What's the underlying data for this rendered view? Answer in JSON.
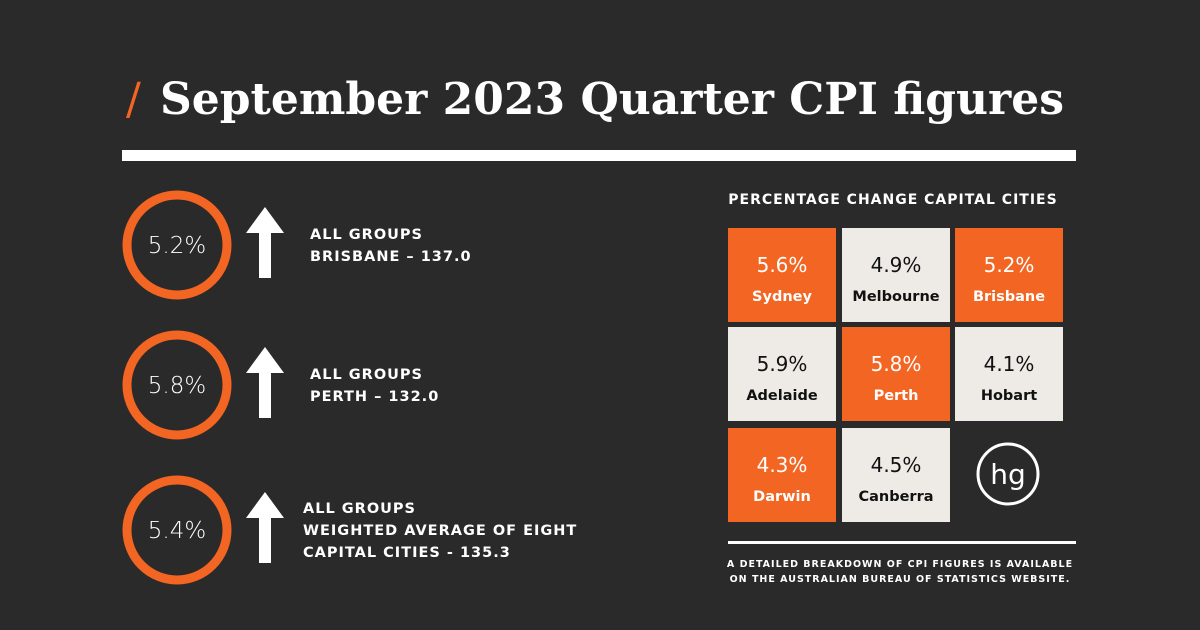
{
  "header": {
    "prefix": "/",
    "title": "September 2023 Quarter CPI figures"
  },
  "highlights": [
    {
      "value": "5.2%",
      "lines": [
        "ALL GROUPS",
        "BRISBANE – 137.0"
      ]
    },
    {
      "value": "5.8%",
      "lines": [
        "ALL GROUPS",
        "PERTH – 132.0"
      ]
    },
    {
      "value": "5.4%",
      "lines": [
        "ALL GROUPS",
        "WEIGHTED AVERAGE OF EIGHT",
        "CAPITAL CITIES - 135.3"
      ]
    }
  ],
  "cities": {
    "heading": "PERCENTAGE CHANGE CAPITAL CITIES",
    "cells": [
      {
        "value": "5.6%",
        "city": "Sydney",
        "color": "#f26522"
      },
      {
        "value": "4.9%",
        "city": "Melbourne",
        "color": "#eeeae6"
      },
      {
        "value": "5.2%",
        "city": "Brisbane",
        "color": "#f26522"
      },
      {
        "value": "5.9%",
        "city": "Adelaide",
        "color": "#eeeae6"
      },
      {
        "value": "5.8%",
        "city": "Perth",
        "color": "#f26522"
      },
      {
        "value": "4.1%",
        "city": "Hobart",
        "color": "#eeeae6"
      },
      {
        "value": "4.3%",
        "city": "Darwin",
        "color": "#f26522"
      },
      {
        "value": "4.5%",
        "city": "Canberra",
        "color": "#eeeae6"
      }
    ],
    "logo": "hg"
  },
  "footnote": [
    "A DETAILED BREAKDOWN OF CPI FIGURES IS AVAILABLE",
    "ON THE AUSTRALIAN BUREAU OF STATISTICS WEBSITE."
  ]
}
